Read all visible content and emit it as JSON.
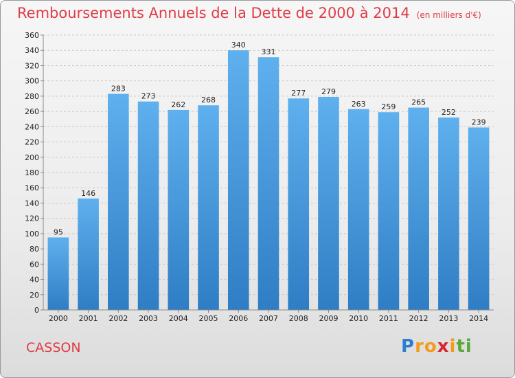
{
  "chart_data": {
    "type": "bar",
    "title": "Remboursements Annuels de la Dette de 2000 à 2014",
    "unit_label": "(en milliers d'€)",
    "xlabel": "",
    "ylabel": "",
    "categories": [
      "2000",
      "2001",
      "2002",
      "2003",
      "2004",
      "2005",
      "2006",
      "2007",
      "2008",
      "2009",
      "2010",
      "2011",
      "2012",
      "2013",
      "2014"
    ],
    "values": [
      95,
      146,
      283,
      273,
      262,
      268,
      340,
      331,
      277,
      279,
      263,
      259,
      265,
      252,
      239
    ],
    "ylim": [
      0,
      360
    ],
    "ytick_step": 20,
    "grid": "horizontal dashed",
    "bar_color": "#3d8fd6"
  },
  "commune": "CASSON",
  "brand": {
    "letters": [
      "P",
      "r",
      "o",
      "x",
      "i",
      "t",
      "i"
    ],
    "colors": [
      "#2c7fd0",
      "#f29b1d",
      "#f29b1d",
      "#d9262c",
      "#f29b1d",
      "#5aa83a",
      "#5aa83a"
    ]
  }
}
